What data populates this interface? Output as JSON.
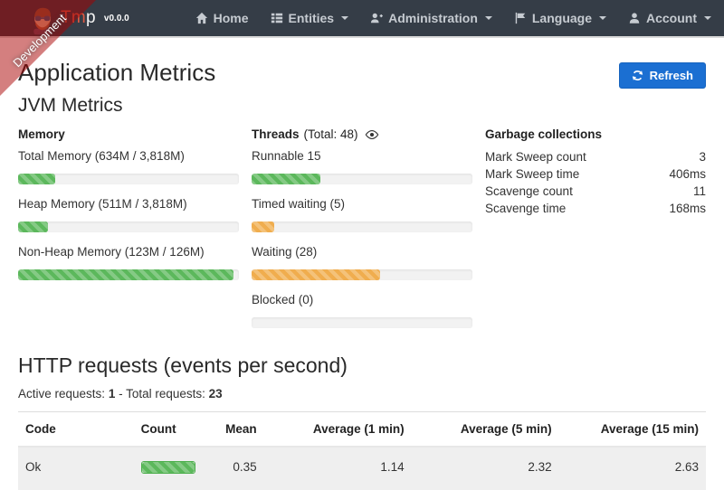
{
  "brand": {
    "name_accent": "Tm",
    "name_rest": "p",
    "version": "v0.0.0"
  },
  "ribbon": {
    "label": "Development"
  },
  "nav": {
    "items": [
      {
        "label": "Home",
        "icon": "home-icon",
        "caret": false
      },
      {
        "label": "Entities",
        "icon": "th-list-icon",
        "caret": true
      },
      {
        "label": "Administration",
        "icon": "user-plus-icon",
        "caret": true
      },
      {
        "label": "Language",
        "icon": "flag-icon",
        "caret": true
      },
      {
        "label": "Account",
        "icon": "user-icon",
        "caret": true
      }
    ]
  },
  "page": {
    "title": "Application Metrics",
    "refresh_label": "Refresh"
  },
  "jvm": {
    "title": "JVM Metrics",
    "memory": {
      "title": "Memory",
      "items": [
        {
          "label": "Total Memory (634M / 3,818M)",
          "percent": "16.6%",
          "type": "success"
        },
        {
          "label": "Heap Memory (511M / 3,818M)",
          "percent": "13.4%",
          "type": "success"
        },
        {
          "label": "Non-Heap Memory (123M / 126M)",
          "percent": "97.6%",
          "type": "success"
        }
      ]
    },
    "threads": {
      "title": "Threads",
      "total": "(Total: 48)",
      "eye_icon": "eye-icon",
      "items": [
        {
          "label": "Runnable 15",
          "percent": "31.3%",
          "type": "success"
        },
        {
          "label": "Timed waiting (5)",
          "percent": "10.4%",
          "type": "warning"
        },
        {
          "label": "Waiting (28)",
          "percent": "58.3%",
          "type": "warning"
        },
        {
          "label": "Blocked (0)",
          "percent": "0%",
          "type": "warning"
        }
      ]
    },
    "gc": {
      "title": "Garbage collections",
      "rows": [
        {
          "label": "Mark Sweep count",
          "value": "3"
        },
        {
          "label": "Mark Sweep time",
          "value": "406ms"
        },
        {
          "label": "Scavenge count",
          "value": "11"
        },
        {
          "label": "Scavenge time",
          "value": "168ms"
        }
      ]
    }
  },
  "http": {
    "title": "HTTP requests (events per second)",
    "active_label": "Active requests:",
    "active_value": "1",
    "separator": "-",
    "total_label": "Total requests:",
    "total_value": "23",
    "table": {
      "headers": [
        "Code",
        "Count",
        "Mean",
        "Average (1 min)",
        "Average (5 min)",
        "Average (15 min)"
      ],
      "rows": [
        {
          "code": "Ok",
          "count_percent": "100%",
          "mean": "0.35",
          "avg_1min": "1.14",
          "avg_5min": "2.32",
          "avg_15min": "2.63"
        }
      ]
    }
  },
  "colors": {
    "navbar_bg": "#353d47",
    "success": "#5cb85c",
    "warning": "#f0ad4e",
    "primary_button": "#1b6fd2",
    "ribbon_bg": "rgba(170,0,0,0.5)",
    "brand_accent": "#e05a43"
  }
}
